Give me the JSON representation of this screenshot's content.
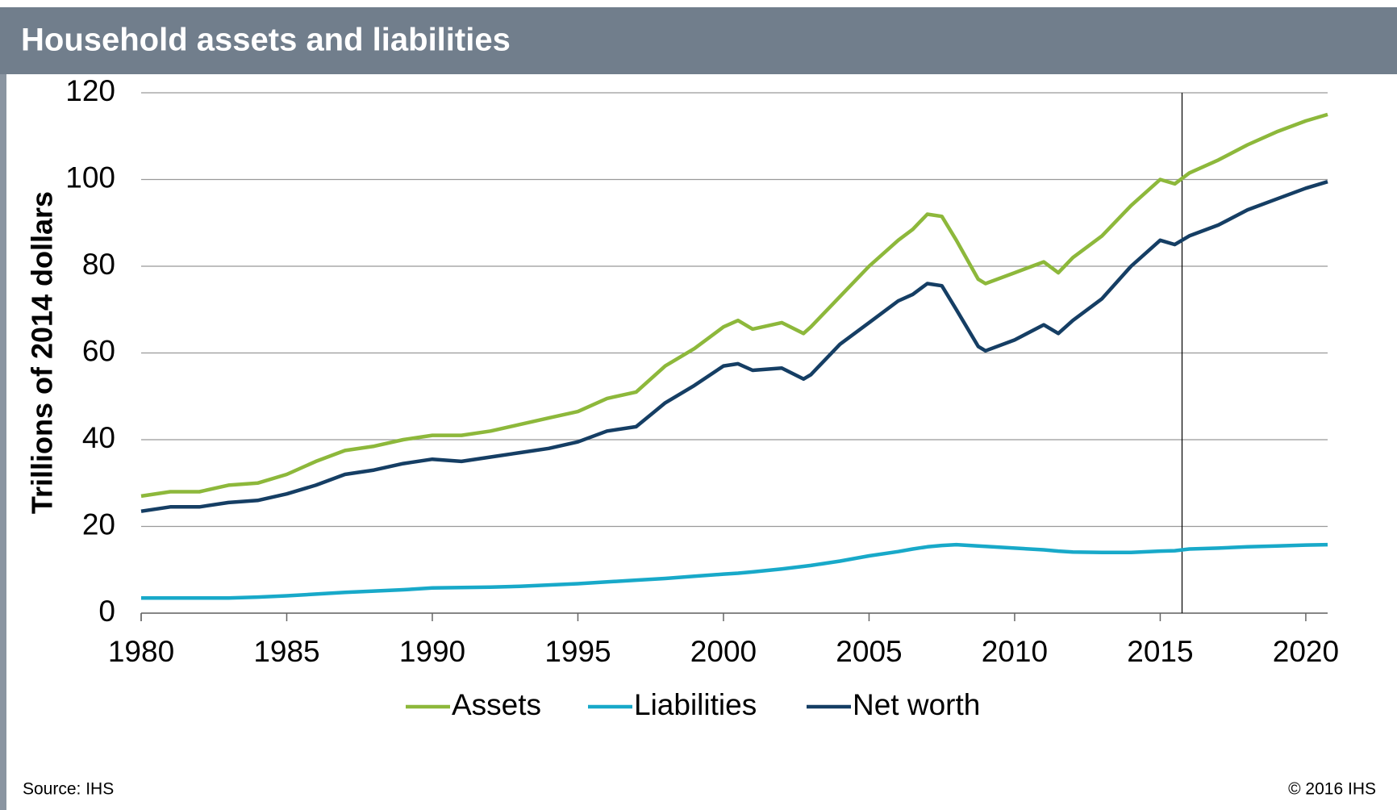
{
  "chart_data": {
    "type": "line",
    "title": "Household assets and liabilities",
    "y_label": "Trillions of 2014 dollars",
    "source": "Source: IHS",
    "copyright": "© 2016 IHS",
    "x": [
      1980,
      1981,
      1982,
      1983,
      1984,
      1985,
      1986,
      1987,
      1988,
      1989,
      1990,
      1991,
      1992,
      1993,
      1994,
      1995,
      1996,
      1997,
      1998,
      1999,
      2000,
      2000.5,
      2001,
      2002,
      2002.75,
      2003,
      2004,
      2005,
      2006,
      2006.5,
      2007,
      2007.5,
      2008,
      2008.75,
      2009,
      2010,
      2011,
      2011.5,
      2012,
      2013,
      2014,
      2015,
      2015.5,
      2016,
      2017,
      2018,
      2019,
      2020,
      2020.75
    ],
    "series": [
      {
        "name": "Assets",
        "color": "#8db83b",
        "values": [
          27,
          28,
          28,
          29.5,
          30,
          32,
          35,
          37.5,
          38.5,
          40,
          41,
          41,
          42,
          43.5,
          45,
          46.5,
          49.5,
          51,
          57,
          61,
          66,
          67.5,
          65.5,
          67,
          64.5,
          66,
          73,
          80,
          86,
          88.5,
          92,
          91.5,
          86,
          77,
          76,
          78.5,
          81,
          78.5,
          82,
          87,
          94,
          100,
          99,
          101.5,
          104.5,
          108,
          111,
          113.5,
          115
        ]
      },
      {
        "name": "Liabilities",
        "color": "#18a9c9",
        "values": [
          3.5,
          3.5,
          3.5,
          3.5,
          3.7,
          4,
          4.4,
          4.8,
          5.1,
          5.4,
          5.8,
          5.9,
          6,
          6.2,
          6.5,
          6.8,
          7.2,
          7.6,
          8,
          8.5,
          9,
          9.2,
          9.5,
          10.2,
          10.8,
          11,
          12,
          13.2,
          14.2,
          14.8,
          15.3,
          15.6,
          15.8,
          15.5,
          15.4,
          15,
          14.6,
          14.3,
          14.1,
          14,
          14,
          14.3,
          14.4,
          14.8,
          15,
          15.3,
          15.5,
          15.7,
          15.8
        ]
      },
      {
        "name": "Net worth",
        "color": "#153e64",
        "values": [
          23.5,
          24.5,
          24.5,
          25.5,
          26,
          27.5,
          29.5,
          32,
          33,
          34.5,
          35.5,
          35,
          36,
          37,
          38,
          39.5,
          42,
          43,
          48.5,
          52.5,
          57,
          57.5,
          56,
          56.5,
          54,
          55,
          62,
          67,
          72,
          73.5,
          76,
          75.5,
          70,
          61.5,
          60.5,
          63,
          66.5,
          64.5,
          67.5,
          72.5,
          80,
          86,
          85,
          87,
          89.5,
          93,
          95.5,
          98,
          99.5
        ]
      }
    ],
    "xlim": [
      1980,
      2020.75
    ],
    "xticks": [
      1980,
      1985,
      1990,
      1995,
      2000,
      2005,
      2010,
      2015,
      2020
    ],
    "ylim": [
      0,
      120
    ],
    "yticks": [
      0,
      20,
      40,
      60,
      80,
      100,
      120
    ],
    "grid": true,
    "forecast_divider_x": 2015.75,
    "legend": "bottom"
  }
}
